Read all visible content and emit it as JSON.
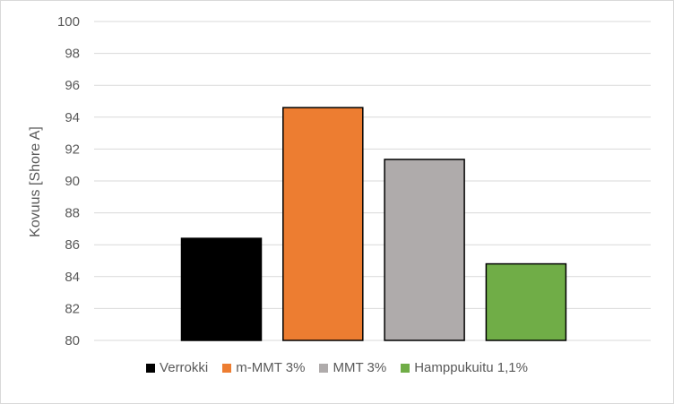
{
  "chart_data": {
    "type": "bar",
    "categories": [
      "Verrokki",
      "m-MMT 3%",
      "MMT 3%",
      "Hamppukuitu 1,1%"
    ],
    "values": [
      86.4,
      94.6,
      91.35,
      84.8
    ],
    "colors": [
      "#000000",
      "#ed7d31",
      "#afabab",
      "#70ad47"
    ],
    "ylabel": "Kovuus [Shore A]",
    "ylim": [
      80,
      100
    ],
    "yticks": [
      "80",
      "82",
      "84",
      "86",
      "88",
      "90",
      "92",
      "94",
      "96",
      "98",
      "100"
    ],
    "grid": true,
    "legend_position": "bottom"
  }
}
